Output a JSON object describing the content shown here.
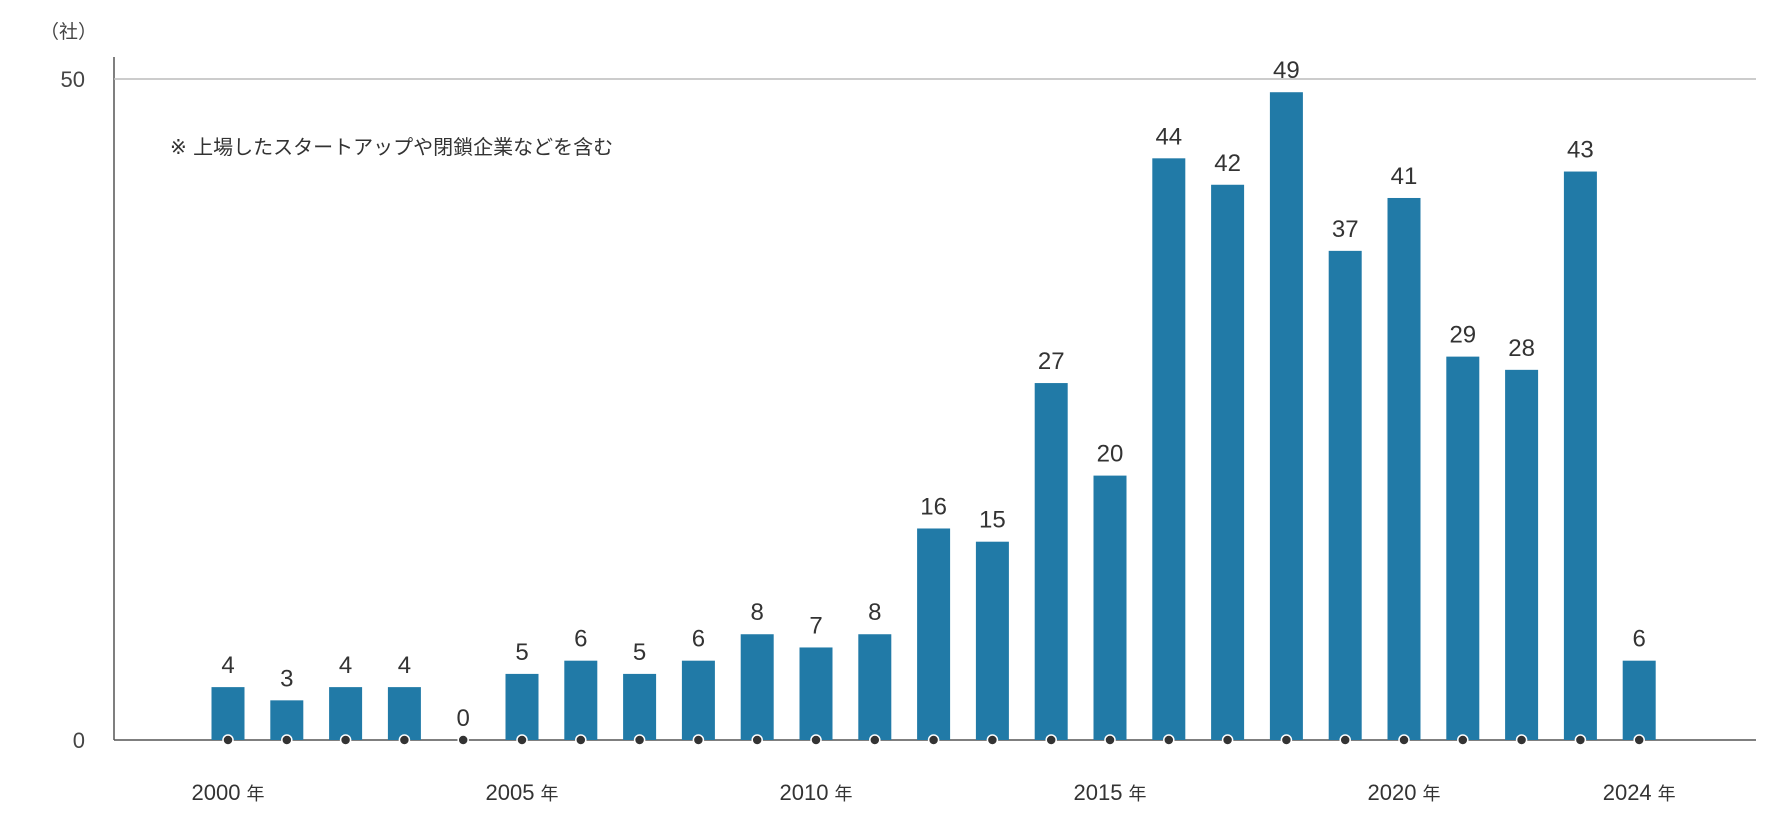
{
  "chart_data": {
    "type": "bar",
    "unit_label": "（社）",
    "note": "※ 上場したスタートアップや閉鎖企業などを含む",
    "ylim": [
      0,
      50
    ],
    "y_ticks": [
      "0",
      "50"
    ],
    "years": [
      2000,
      2001,
      2002,
      2003,
      2004,
      2005,
      2006,
      2007,
      2008,
      2009,
      2010,
      2011,
      2012,
      2013,
      2014,
      2015,
      2016,
      2017,
      2018,
      2019,
      2020,
      2021,
      2022,
      2023,
      2024
    ],
    "values": [
      4,
      3,
      4,
      4,
      0,
      5,
      6,
      5,
      6,
      8,
      7,
      8,
      16,
      15,
      27,
      20,
      44,
      42,
      49,
      37,
      41,
      29,
      28,
      43,
      6
    ],
    "x_tick_labels": [
      {
        "year": 2000,
        "label": "2000",
        "suffix": "年"
      },
      {
        "year": 2005,
        "label": "2005",
        "suffix": "年"
      },
      {
        "year": 2010,
        "label": "2010",
        "suffix": "年"
      },
      {
        "year": 2015,
        "label": "2015",
        "suffix": "年"
      },
      {
        "year": 2020,
        "label": "2020",
        "suffix": "年"
      },
      {
        "year": 2024,
        "label": "2024",
        "suffix": "年"
      }
    ],
    "bar_color": "#217aa7",
    "axis_color": "#555555",
    "grid_color": "#bbbbbb",
    "grid": false
  }
}
